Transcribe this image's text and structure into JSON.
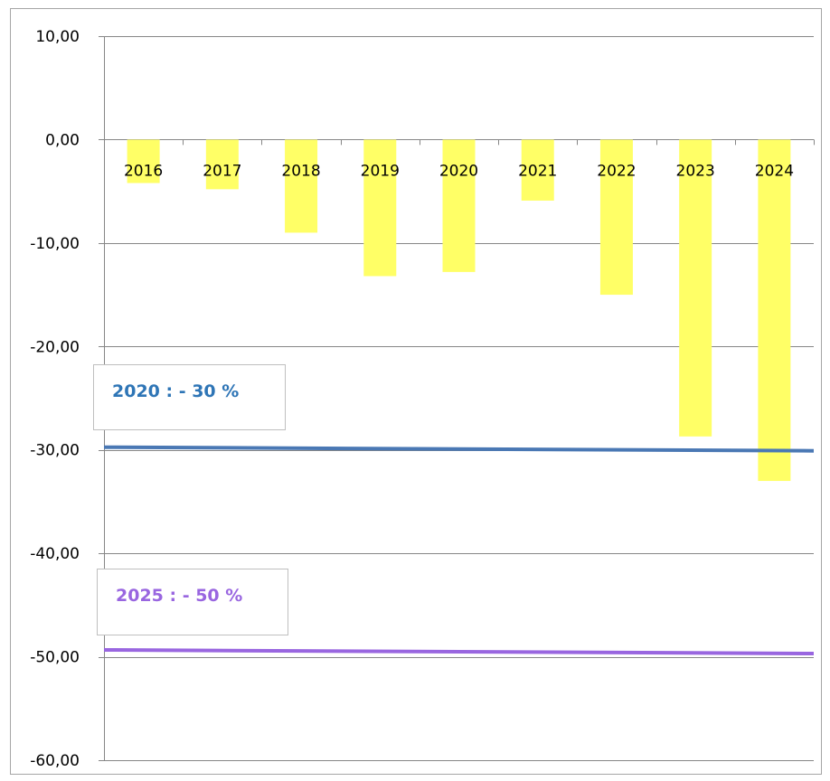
{
  "chart_data": {
    "type": "bar",
    "categories": [
      "2016",
      "2017",
      "2018",
      "2019",
      "2020",
      "2021",
      "2022",
      "2023",
      "2024"
    ],
    "values": [
      -4.2,
      -4.8,
      -9.0,
      -13.2,
      -12.8,
      -5.9,
      -15.0,
      -28.7,
      -33.0
    ],
    "ylim": [
      -60,
      10
    ],
    "yticks": [
      "10,00",
      "0,00",
      "-10,00",
      "-20,00",
      "-30,00",
      "-40,00",
      "-50,00",
      "-60,00"
    ],
    "ytick_values": [
      10,
      0,
      -10,
      -20,
      -30,
      -40,
      -50,
      -60
    ],
    "grid": true,
    "bar_color": "#ffff66",
    "reference_lines": [
      {
        "label": "2020 : - 30 %",
        "value": -30,
        "color": "#4a78b4",
        "label_color": "#2e75b6"
      },
      {
        "label": "2025 : - 50 %",
        "value": -49.6,
        "color": "#9966e0",
        "label_color": "#9966e0"
      }
    ]
  }
}
